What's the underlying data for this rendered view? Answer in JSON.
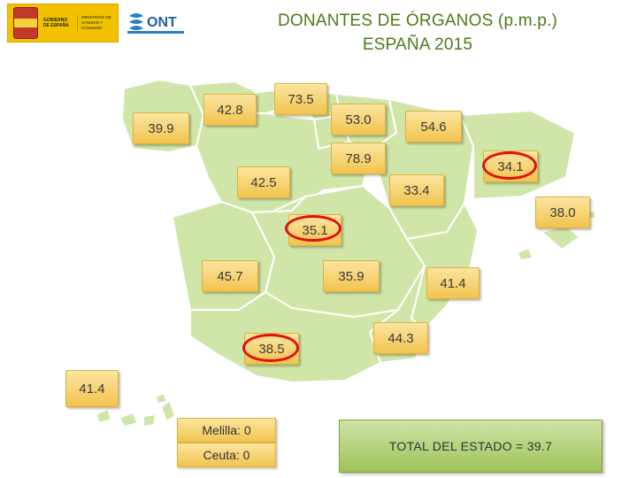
{
  "title": {
    "line1": "DONANTES DE ÓRGANOS (p.m.p.)",
    "line2": "ESPAÑA  2015"
  },
  "logos": {
    "government": {
      "text1": "GOBIERNO DE ESPAÑA",
      "text2": "MINISTERIO DE SANIDAD Y CONSUMO",
      "icon": "spain-crest-icon"
    },
    "ont": {
      "text": "ONT",
      "icon": "ont-logo-icon"
    }
  },
  "colors": {
    "title": "#4d7a1a",
    "map_land": "#cfe6a8",
    "label_fill": "#f2c44f",
    "highlight_circle": "#e01010",
    "total_fill": "#9fc35a"
  },
  "regions": [
    {
      "value": "39.9"
    },
    {
      "value": "42.8"
    },
    {
      "value": "73.5"
    },
    {
      "value": "53.0"
    },
    {
      "value": "54.6"
    },
    {
      "value": "78.9"
    },
    {
      "value": "34.1"
    },
    {
      "value": "42.5"
    },
    {
      "value": "33.4"
    },
    {
      "value": "38.0"
    },
    {
      "value": "35.1"
    },
    {
      "value": "45.7"
    },
    {
      "value": "35.9"
    },
    {
      "value": "41.4"
    },
    {
      "value": "38.5"
    },
    {
      "value": "44.3"
    },
    {
      "value": "41.4"
    }
  ],
  "cities": {
    "melilla": "Melilla: 0",
    "ceuta": "Ceuta: 0"
  },
  "total": "TOTAL  DEL  ESTADO = 39.7"
}
